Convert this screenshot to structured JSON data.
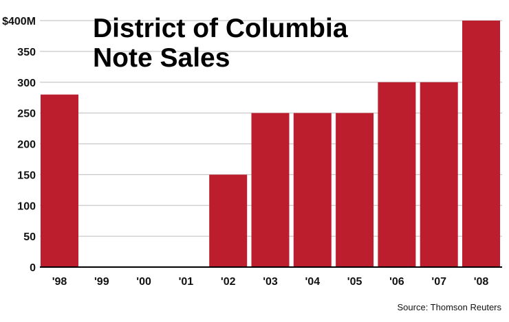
{
  "chart_data": {
    "type": "bar",
    "title": "District of Columbia\nNote Sales",
    "title_lines": [
      "District of Columbia",
      "Note Sales"
    ],
    "categories": [
      "'98",
      "'99",
      "'00",
      "'01",
      "'02",
      "'03",
      "'04",
      "'05",
      "'06",
      "'07",
      "'08"
    ],
    "values": [
      280,
      0,
      0,
      0,
      150,
      250,
      250,
      250,
      300,
      300,
      400
    ],
    "y_tick_values": [
      0,
      50,
      100,
      150,
      200,
      250,
      300,
      350,
      400
    ],
    "y_tick_labels": [
      "0",
      "50",
      "100",
      "150",
      "200",
      "250",
      "300",
      "350",
      "$400M"
    ],
    "ylim": [
      0,
      400
    ],
    "xlabel": "",
    "ylabel": "",
    "grid": true,
    "legend": "none",
    "bar_color": "#bd1e2d",
    "grid_color": "#c8c8c8",
    "source": "Source: Thomson Reuters"
  }
}
